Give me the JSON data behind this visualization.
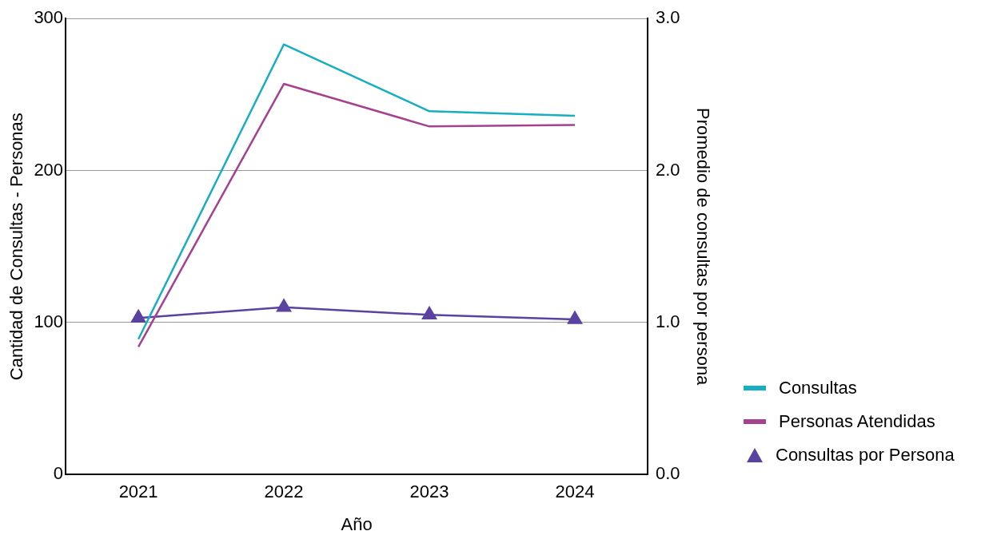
{
  "chart_data": {
    "type": "line",
    "xlabel": "Año",
    "ylabel": "Cantidad de Consultas - Personas",
    "y2label": "Promedio de consultas por persona",
    "categories": [
      "2021",
      "2022",
      "2023",
      "2024"
    ],
    "series": [
      {
        "name": "Consultas",
        "color": "#17aec2",
        "values": [
          89,
          283,
          239,
          236
        ],
        "marker": "none"
      },
      {
        "name": "Personas Atendidas",
        "color": "#a6418f",
        "values": [
          84,
          257,
          229,
          230
        ],
        "marker": "none"
      },
      {
        "name": "Consultas por Persona",
        "color": "#5a43a0",
        "values": [
          1.03,
          1.1,
          1.05,
          1.02
        ],
        "axis": "y2",
        "marker": "triangle"
      }
    ],
    "ylim": [
      0,
      300
    ],
    "yticks": [
      0,
      100,
      200,
      300
    ],
    "y2lim": [
      0,
      3
    ],
    "y2ticks": [
      {
        "value": 0,
        "label": "0.0"
      },
      {
        "value": 1,
        "label": "1.0"
      },
      {
        "value": 2,
        "label": "2.0"
      },
      {
        "value": 3,
        "label": "3.0"
      }
    ],
    "grid": "y",
    "legend": "right",
    "line_style": "solid"
  }
}
